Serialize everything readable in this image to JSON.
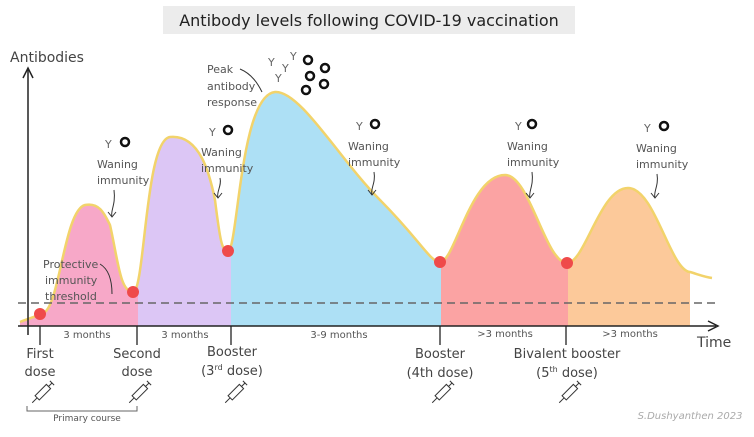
{
  "title": "Antibody levels following COVID-19 vaccination",
  "y_axis_label": "Antibodies",
  "x_axis_label": "Time",
  "annotations": {
    "peak": [
      "Peak",
      "antibody",
      "response"
    ],
    "waning": [
      "Waning",
      "immunity"
    ],
    "threshold": [
      "Protective",
      "immunity",
      "threshold"
    ]
  },
  "intervals": [
    "3 months",
    "3 months",
    "3-9 months",
    ">3 months",
    ">3 months"
  ],
  "doses": [
    {
      "line1": "First",
      "line2": "dose"
    },
    {
      "line1": "Second",
      "line2": "dose"
    },
    {
      "line1": "Booster",
      "line2": "(3",
      "sup": "rd",
      "line2b": " dose)"
    },
    {
      "line1": "Booster",
      "line2": "(4th dose)"
    },
    {
      "line1": "Bivalent booster",
      "line2": "(5",
      "sup": "th",
      "line2b": " dose)"
    }
  ],
  "primary_course": "Primary course",
  "signature": "S.Dushyanthen 2023",
  "colors": {
    "pink": "#f7a8c8",
    "purple": "#dcc6f5",
    "blue": "#ade0f5",
    "red": "#fba3a3",
    "orange": "#fcc99a",
    "curve": "#f2d36b",
    "dose_marker": "#ef4a4a"
  }
}
